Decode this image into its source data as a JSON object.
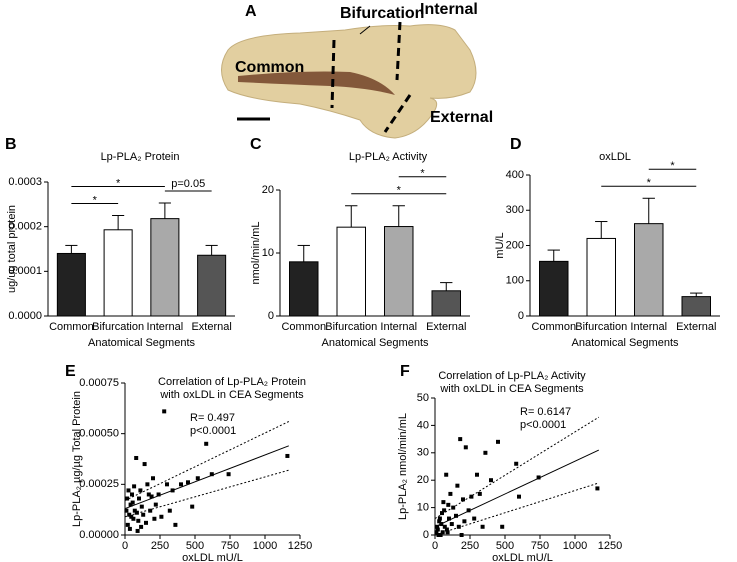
{
  "photo": {
    "panel": "A",
    "labels": [
      "Bifurcation",
      "Internal",
      "Common",
      "External"
    ]
  },
  "chart_data": [
    {
      "type": "bar",
      "panel": "B",
      "title": [
        "Lp-PLA₂ Protein"
      ],
      "ylabel": "ug/ug total protein",
      "xlabel": "Anatomical Segments",
      "categories": [
        "Common",
        "Bifurcation",
        "Internal",
        "External"
      ],
      "values": [
        0.00014,
        0.000193,
        0.000218,
        0.000136
      ],
      "errors": [
        1.8e-05,
        3.2e-05,
        3.5e-05,
        2.2e-05
      ],
      "colors": [
        "#222222",
        "#ffffff",
        "#a9a9a9",
        "#555555"
      ],
      "ylim": [
        0,
        0.0003
      ],
      "yticks": [
        {
          "value": 0,
          "label": "0.0000"
        },
        0.0001,
        0.0002,
        0.0003
      ],
      "brackets": [
        {
          "label": "*",
          "from": "Common",
          "to": "Bifurcation"
        },
        {
          "label": "*",
          "from": "Common",
          "to": "Internal"
        },
        {
          "label": "p=0.05",
          "from": "Internal",
          "to": "External"
        }
      ]
    },
    {
      "type": "bar",
      "panel": "C",
      "title": [
        "Lp-PLA₂ Activity"
      ],
      "ylabel": "nmol/min/mL",
      "xlabel": "Anatomical Segments",
      "categories": [
        "Common",
        "Bifurcation",
        "Internal",
        "External"
      ],
      "values": [
        8.6,
        14.1,
        14.2,
        4.0
      ],
      "errors": [
        2.6,
        3.4,
        3.3,
        1.3
      ],
      "colors": [
        "#222222",
        "#ffffff",
        "#a9a9a9",
        "#555555"
      ],
      "ylim": [
        0,
        20
      ],
      "yticks": [
        0,
        10,
        20
      ],
      "brackets": [
        {
          "label": "*",
          "from": "Bifurcation",
          "to": "External"
        },
        {
          "label": "*",
          "from": "Internal",
          "to": "External"
        }
      ]
    },
    {
      "type": "bar",
      "panel": "D",
      "title": [
        "oxLDL"
      ],
      "ylabel": "mU/L",
      "xlabel": "Anatomical Segments",
      "categories": [
        "Common",
        "Bifurcation",
        "Internal",
        "External"
      ],
      "values": [
        155,
        220,
        262,
        55
      ],
      "errors": [
        32,
        48,
        72,
        10
      ],
      "colors": [
        "#222222",
        "#ffffff",
        "#a9a9a9",
        "#555555"
      ],
      "ylim": [
        0,
        400
      ],
      "yticks": [
        0,
        100,
        200,
        300,
        400
      ],
      "brackets": [
        {
          "label": "*",
          "from": "Bifurcation",
          "to": "External"
        },
        {
          "label": "*",
          "from": "Internal",
          "to": "External"
        }
      ]
    },
    {
      "type": "scatter",
      "panel": "E",
      "title": [
        "Correlation of Lp-PLA₂ Protein",
        "with oxLDL in CEA Segments"
      ],
      "ylabel": "Lp-PLA₂ µg/µg Total Protein",
      "xlabel": "oxLDL mU/L",
      "stats": [
        "R= 0.497",
        "p<0.0001"
      ],
      "color": "#000000",
      "x": [
        20,
        30,
        40,
        50,
        60,
        70,
        80,
        90,
        100,
        110,
        120,
        130,
        140,
        150,
        160,
        170,
        180,
        200,
        220,
        240,
        260,
        280,
        300,
        320,
        340,
        360,
        400,
        450,
        480,
        520,
        580,
        620,
        740,
        1160,
        10,
        15,
        25,
        35,
        45,
        55,
        65,
        85,
        95,
        115,
        190,
        210
      ],
      "y": [
        5e-05,
        0.0001,
        0.00015,
        0.0002,
        8e-05,
        0.00012,
        0.00038,
        2e-05,
        0.00018,
        0.00022,
        0.00014,
        0.0001,
        0.00035,
        6e-05,
        0.00025,
        0.0002,
        0.00012,
        0.00028,
        0.00015,
        0.0002,
        9e-05,
        0.00061,
        0.00025,
        0.00012,
        0.00022,
        5e-05,
        0.00025,
        0.00026,
        0.00014,
        0.00028,
        0.00045,
        0.0003,
        0.0003,
        0.00039,
        0.00012,
        0.00018,
        0.00022,
        3e-05,
        9e-05,
        0.00016,
        0.00024,
        0.00011,
        7e-05,
        4e-05,
        0.00019,
        8e-05
      ],
      "fit_x": [
        0,
        1170
      ],
      "fit_y": [
        0.00013,
        0.00044
      ],
      "ci_upper": [
        0.00017,
        0.00056
      ],
      "ci_lower": [
        9e-05,
        0.00032
      ],
      "xlim": [
        0,
        1250
      ],
      "xticks": [
        0,
        250,
        500,
        750,
        1000,
        1250
      ],
      "ylim": [
        0,
        0.00075
      ],
      "yticks": [
        {
          "value": 0,
          "label": "0.00000"
        },
        0.00025,
        {
          "value": 0.0005,
          "label": "0.00050"
        },
        0.00075
      ]
    },
    {
      "type": "scatter",
      "panel": "F",
      "title": [
        "Correlation of Lp-PLA₂ Activity",
        "with oxLDL in CEA Segments"
      ],
      "ylabel": "Lp-PLA₂ nmol/min/mL",
      "xlabel": "oxLDL mU/L",
      "stats": [
        "R= 0.6147",
        "p<0.0001"
      ],
      "color": "#000000",
      "x": [
        20,
        30,
        40,
        50,
        60,
        70,
        80,
        90,
        100,
        110,
        120,
        130,
        150,
        160,
        170,
        180,
        200,
        220,
        240,
        260,
        280,
        300,
        320,
        340,
        360,
        400,
        450,
        480,
        580,
        600,
        740,
        1160,
        10,
        15,
        25,
        35,
        45,
        55,
        65,
        85,
        95,
        190,
        210
      ],
      "y": [
        2,
        5,
        0,
        8,
        12,
        3,
        22,
        1,
        6,
        15,
        4,
        10,
        7,
        18,
        3,
        35,
        13,
        32,
        9,
        14,
        6,
        22,
        15,
        3,
        30,
        20,
        34,
        3,
        26,
        14,
        21,
        17,
        1,
        3,
        0,
        6,
        4,
        1,
        9,
        2,
        11,
        0,
        5
      ],
      "fit_x": [
        0,
        1170
      ],
      "fit_y": [
        3,
        31
      ],
      "ci_upper": [
        6,
        43
      ],
      "ci_lower": [
        0,
        19
      ],
      "xlim": [
        0,
        1250
      ],
      "xticks": [
        0,
        250,
        500,
        750,
        1000,
        1250
      ],
      "ylim": [
        0,
        50
      ],
      "yticks": [
        0,
        10,
        20,
        30,
        40,
        50
      ]
    }
  ]
}
